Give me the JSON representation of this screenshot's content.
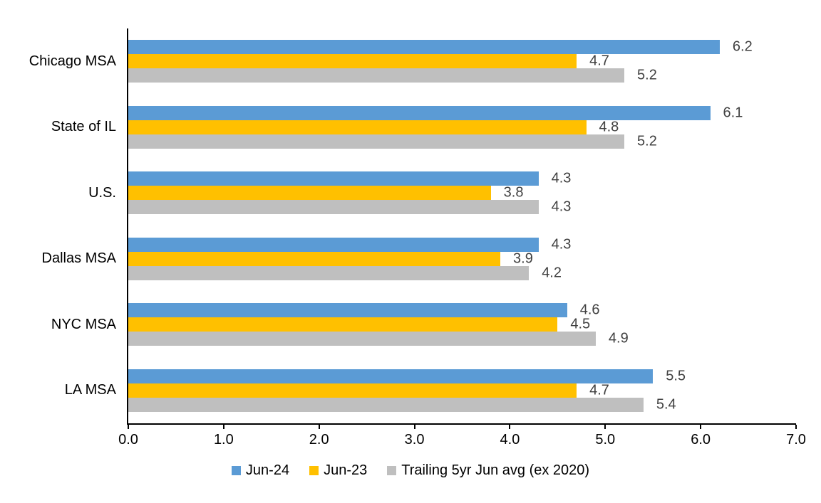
{
  "chart_data": {
    "type": "bar",
    "orientation": "horizontal",
    "title": "",
    "categories": [
      "Chicago MSA",
      "State of IL",
      "U.S.",
      "Dallas MSA",
      "NYC MSA",
      "LA MSA"
    ],
    "series": [
      {
        "name": "Jun-24",
        "color": "#5B9BD5",
        "values": [
          6.2,
          6.1,
          4.3,
          4.3,
          4.6,
          5.5
        ]
      },
      {
        "name": "Jun-23",
        "color": "#FFC000",
        "values": [
          4.7,
          4.8,
          3.8,
          3.9,
          4.5,
          4.7
        ]
      },
      {
        "name": "Trailing 5yr Jun avg (ex 2020)",
        "color": "#BFBFBF",
        "values": [
          5.2,
          5.2,
          4.3,
          4.2,
          4.9,
          5.4
        ]
      }
    ],
    "x_axis": {
      "min": 0,
      "max": 7,
      "tick_interval": 1,
      "tick_labels": [
        "0.0",
        "1.0",
        "2.0",
        "3.0",
        "4.0",
        "5.0",
        "6.0",
        "7.0"
      ]
    },
    "data_labels": true,
    "value_label_decimals": 1,
    "grid": false,
    "legend_position": "bottom",
    "colors": {
      "background": "#FFFFFF",
      "axis_line": "#000000",
      "category_label_text": "#000000",
      "tick_label_text": "#000000",
      "value_label_text": "#404040",
      "legend_text": "#000000"
    }
  }
}
